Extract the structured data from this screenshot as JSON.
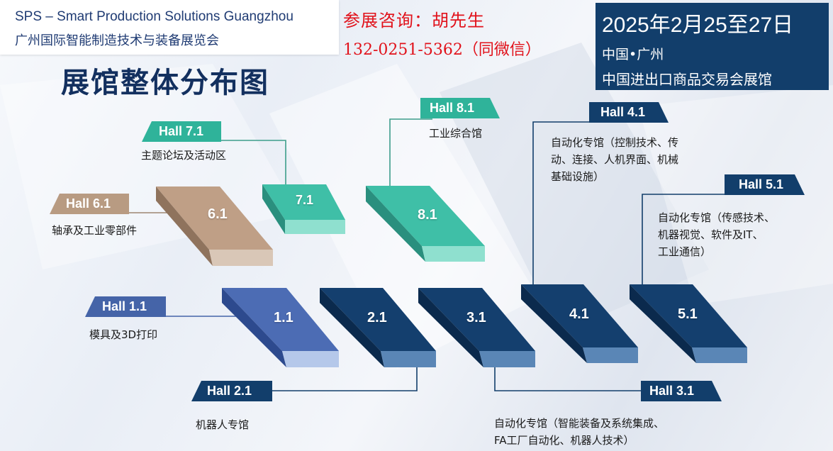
{
  "header": {
    "brand_en": "SPS – Smart Production Solutions Guangzhou",
    "brand_cn": "广州国际智能制造技术与装备展览会",
    "contact_line1": "参展咨询：胡先生",
    "contact_line2": "132-0251-5362（同微信）",
    "date": "2025年2月25至27日",
    "city": "中国•广州",
    "venue": "中国进出口商品交易会展馆"
  },
  "title": "展馆整体分布图",
  "colors": {
    "navy": "#123e6b",
    "teal": "#2fb39a",
    "tan": "#b89b82",
    "light_blue": "#4564a8",
    "contact_red": "#e1121b"
  },
  "halls": [
    {
      "id": "7.1",
      "tag": "Hall 7.1",
      "desc": [
        "主题论坛及活动区"
      ]
    },
    {
      "id": "8.1",
      "tag": "Hall 8.1",
      "desc": [
        "工业综合馆"
      ]
    },
    {
      "id": "6.1",
      "tag": "Hall 6.1",
      "desc": [
        "轴承及工业零部件"
      ]
    },
    {
      "id": "4.1",
      "tag": "Hall 4.1",
      "desc": [
        "自动化专馆（控制技术、传",
        "动、连接、人机界面、机械",
        "基础设施）"
      ]
    },
    {
      "id": "5.1",
      "tag": "Hall 5.1",
      "desc": [
        "自动化专馆（传感技术、",
        "机器视觉、软件及IT、",
        "工业通信）"
      ]
    },
    {
      "id": "1.1",
      "tag": "Hall 1.1",
      "desc": [
        "模具及3D打印"
      ]
    },
    {
      "id": "2.1",
      "tag": "Hall 2.1",
      "desc": [
        "机器人专馆"
      ]
    },
    {
      "id": "3.1",
      "tag": "Hall 3.1",
      "desc": [
        "自动化专馆（智能装备及系统集成、",
        "FA工厂自动化、机器人技术）"
      ]
    }
  ]
}
